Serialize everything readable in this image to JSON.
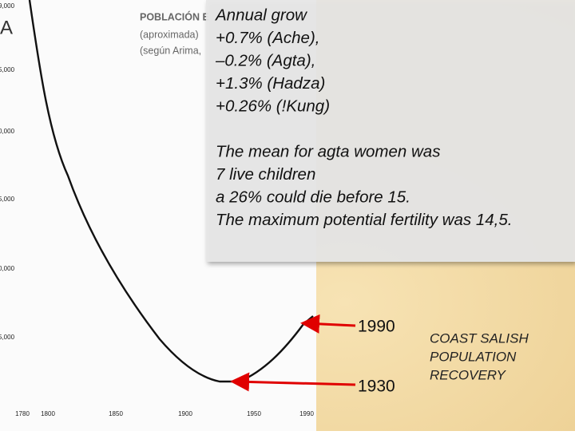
{
  "figure": {
    "panel_letter": "A",
    "title_lines": [
      "POBLACIÓN E",
      "(aproximada)",
      "(según Arima,"
    ],
    "y_labels": [
      "9,000",
      "5,000",
      "0,000",
      "5,000",
      "0,000",
      "5,000"
    ],
    "x_labels": [
      "1780",
      "1800",
      "1850",
      "1900",
      "1950",
      "1990"
    ]
  },
  "note": {
    "growth_lines": [
      "Annual grow",
      "+0.7% (Ache),",
      " ‒0.2% (Agta),",
      "+1.3% (Hadza)",
      "+0.26% (!Kung)"
    ],
    "fertility_lines": [
      "The mean for agta women was",
      " 7 live children",
      "a 26% could die before 15.",
      "The maximum potential fertility was 14,5."
    ]
  },
  "markers": [
    "1990",
    "1930"
  ],
  "caption": [
    "COAST SALISH",
    "POPULATION",
    "RECOVERY"
  ]
}
